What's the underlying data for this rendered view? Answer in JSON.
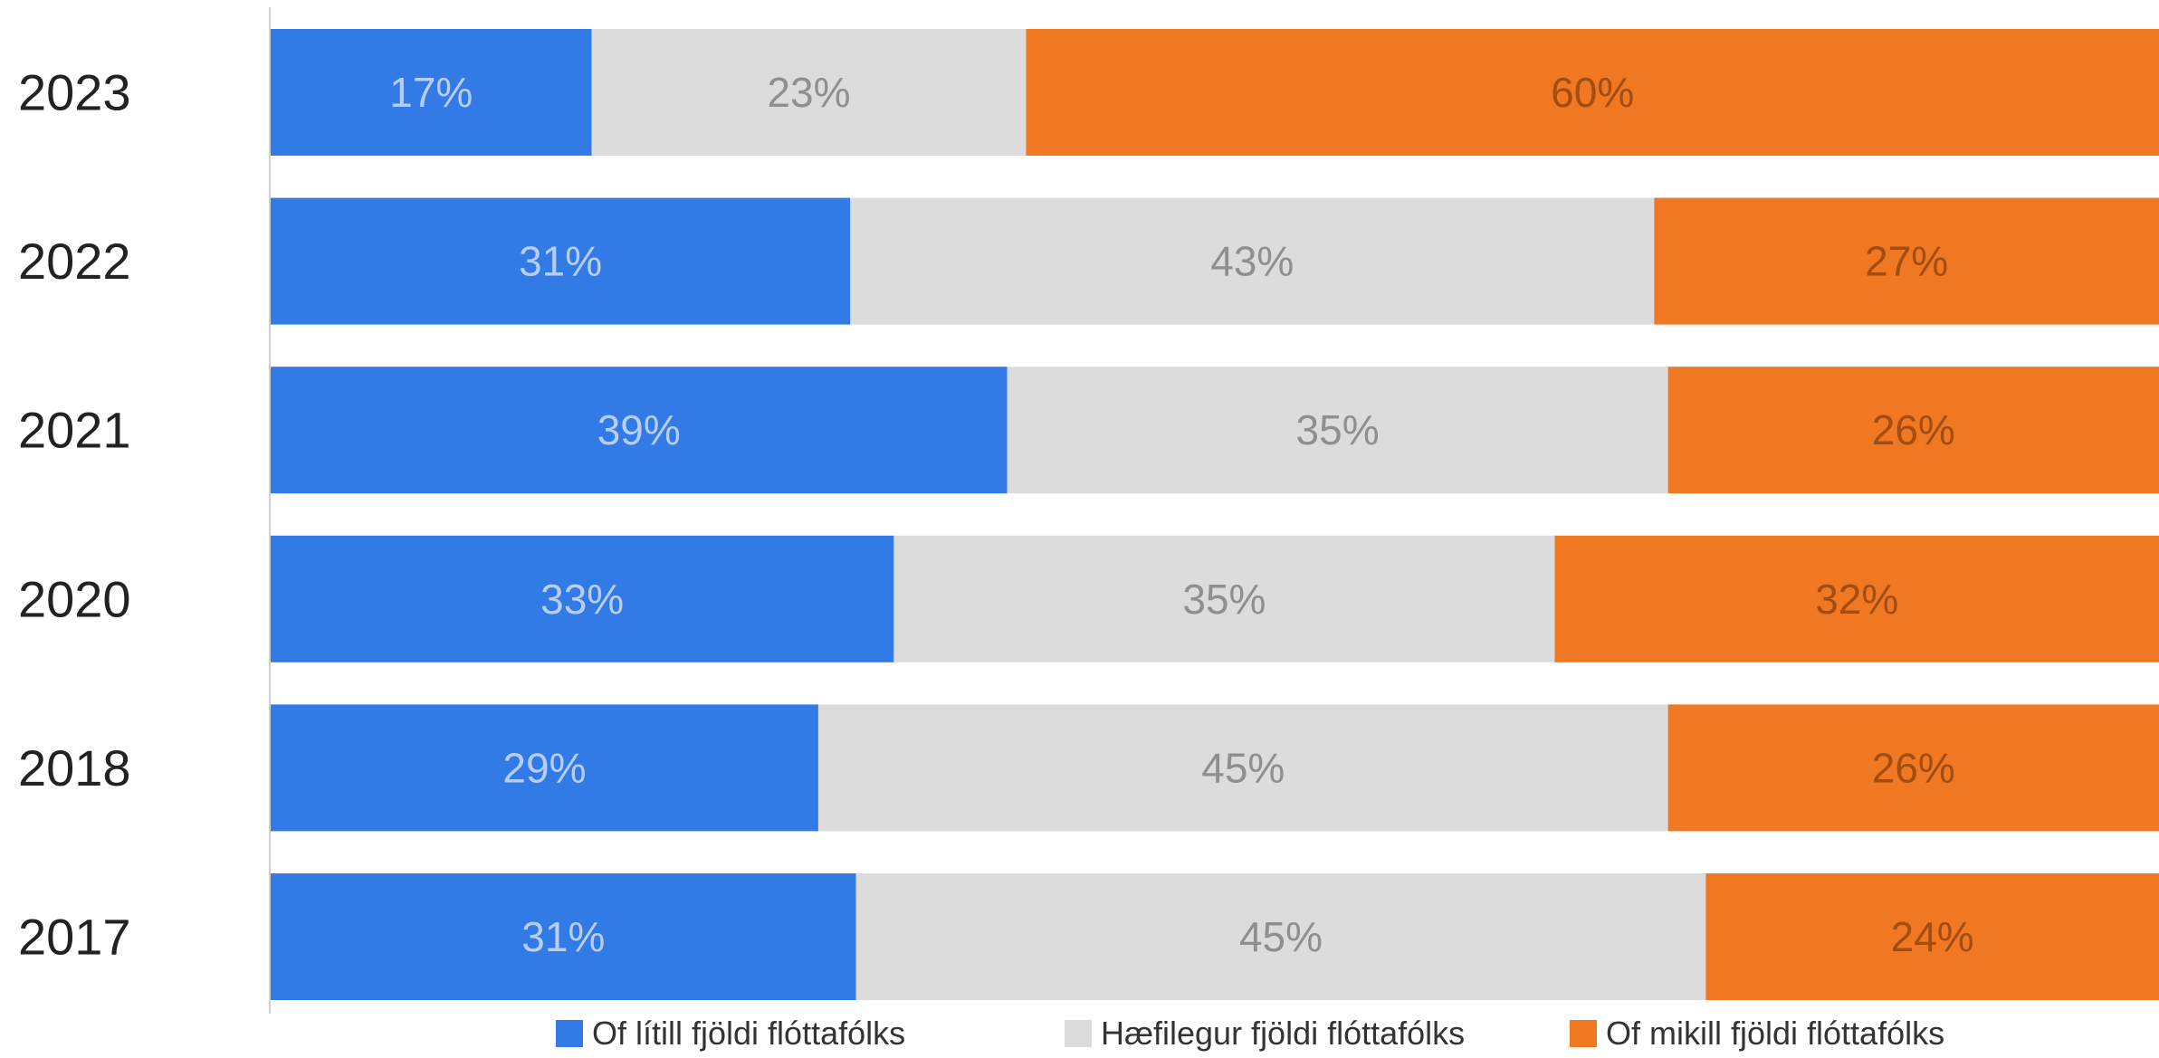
{
  "chart_data": {
    "type": "bar",
    "orientation": "horizontal",
    "stacked": true,
    "normalized": true,
    "categories": [
      "2023",
      "2022",
      "2021",
      "2020",
      "2018",
      "2017"
    ],
    "series": [
      {
        "name": "Of lítill fjöldi flóttafólks",
        "values": [
          17,
          31,
          39,
          33,
          29,
          31
        ],
        "labels": [
          "17%",
          "31%",
          "39%",
          "33%",
          "29%",
          "31%"
        ],
        "color": "#327be7",
        "label_color": "#b8cdf2"
      },
      {
        "name": "Hæfilegur fjöldi flóttafólks",
        "values": [
          23,
          43,
          35,
          35,
          45,
          45
        ],
        "labels": [
          "23%",
          "43%",
          "35%",
          "35%",
          "45%",
          "45%"
        ],
        "color": "#dcdcdc",
        "label_color": "#8f8f8f"
      },
      {
        "name": "Of mikill fjöldi flóttafólks",
        "values": [
          60,
          27,
          26,
          32,
          26,
          24
        ],
        "labels": [
          "60%",
          "27%",
          "26%",
          "32%",
          "26%",
          "24%"
        ],
        "color": "#f07822",
        "label_color": "#a24d12"
      }
    ],
    "xlim": [
      0,
      100
    ],
    "grid": false,
    "legend_position": "bottom",
    "title": "",
    "xlabel": "",
    "ylabel": ""
  }
}
